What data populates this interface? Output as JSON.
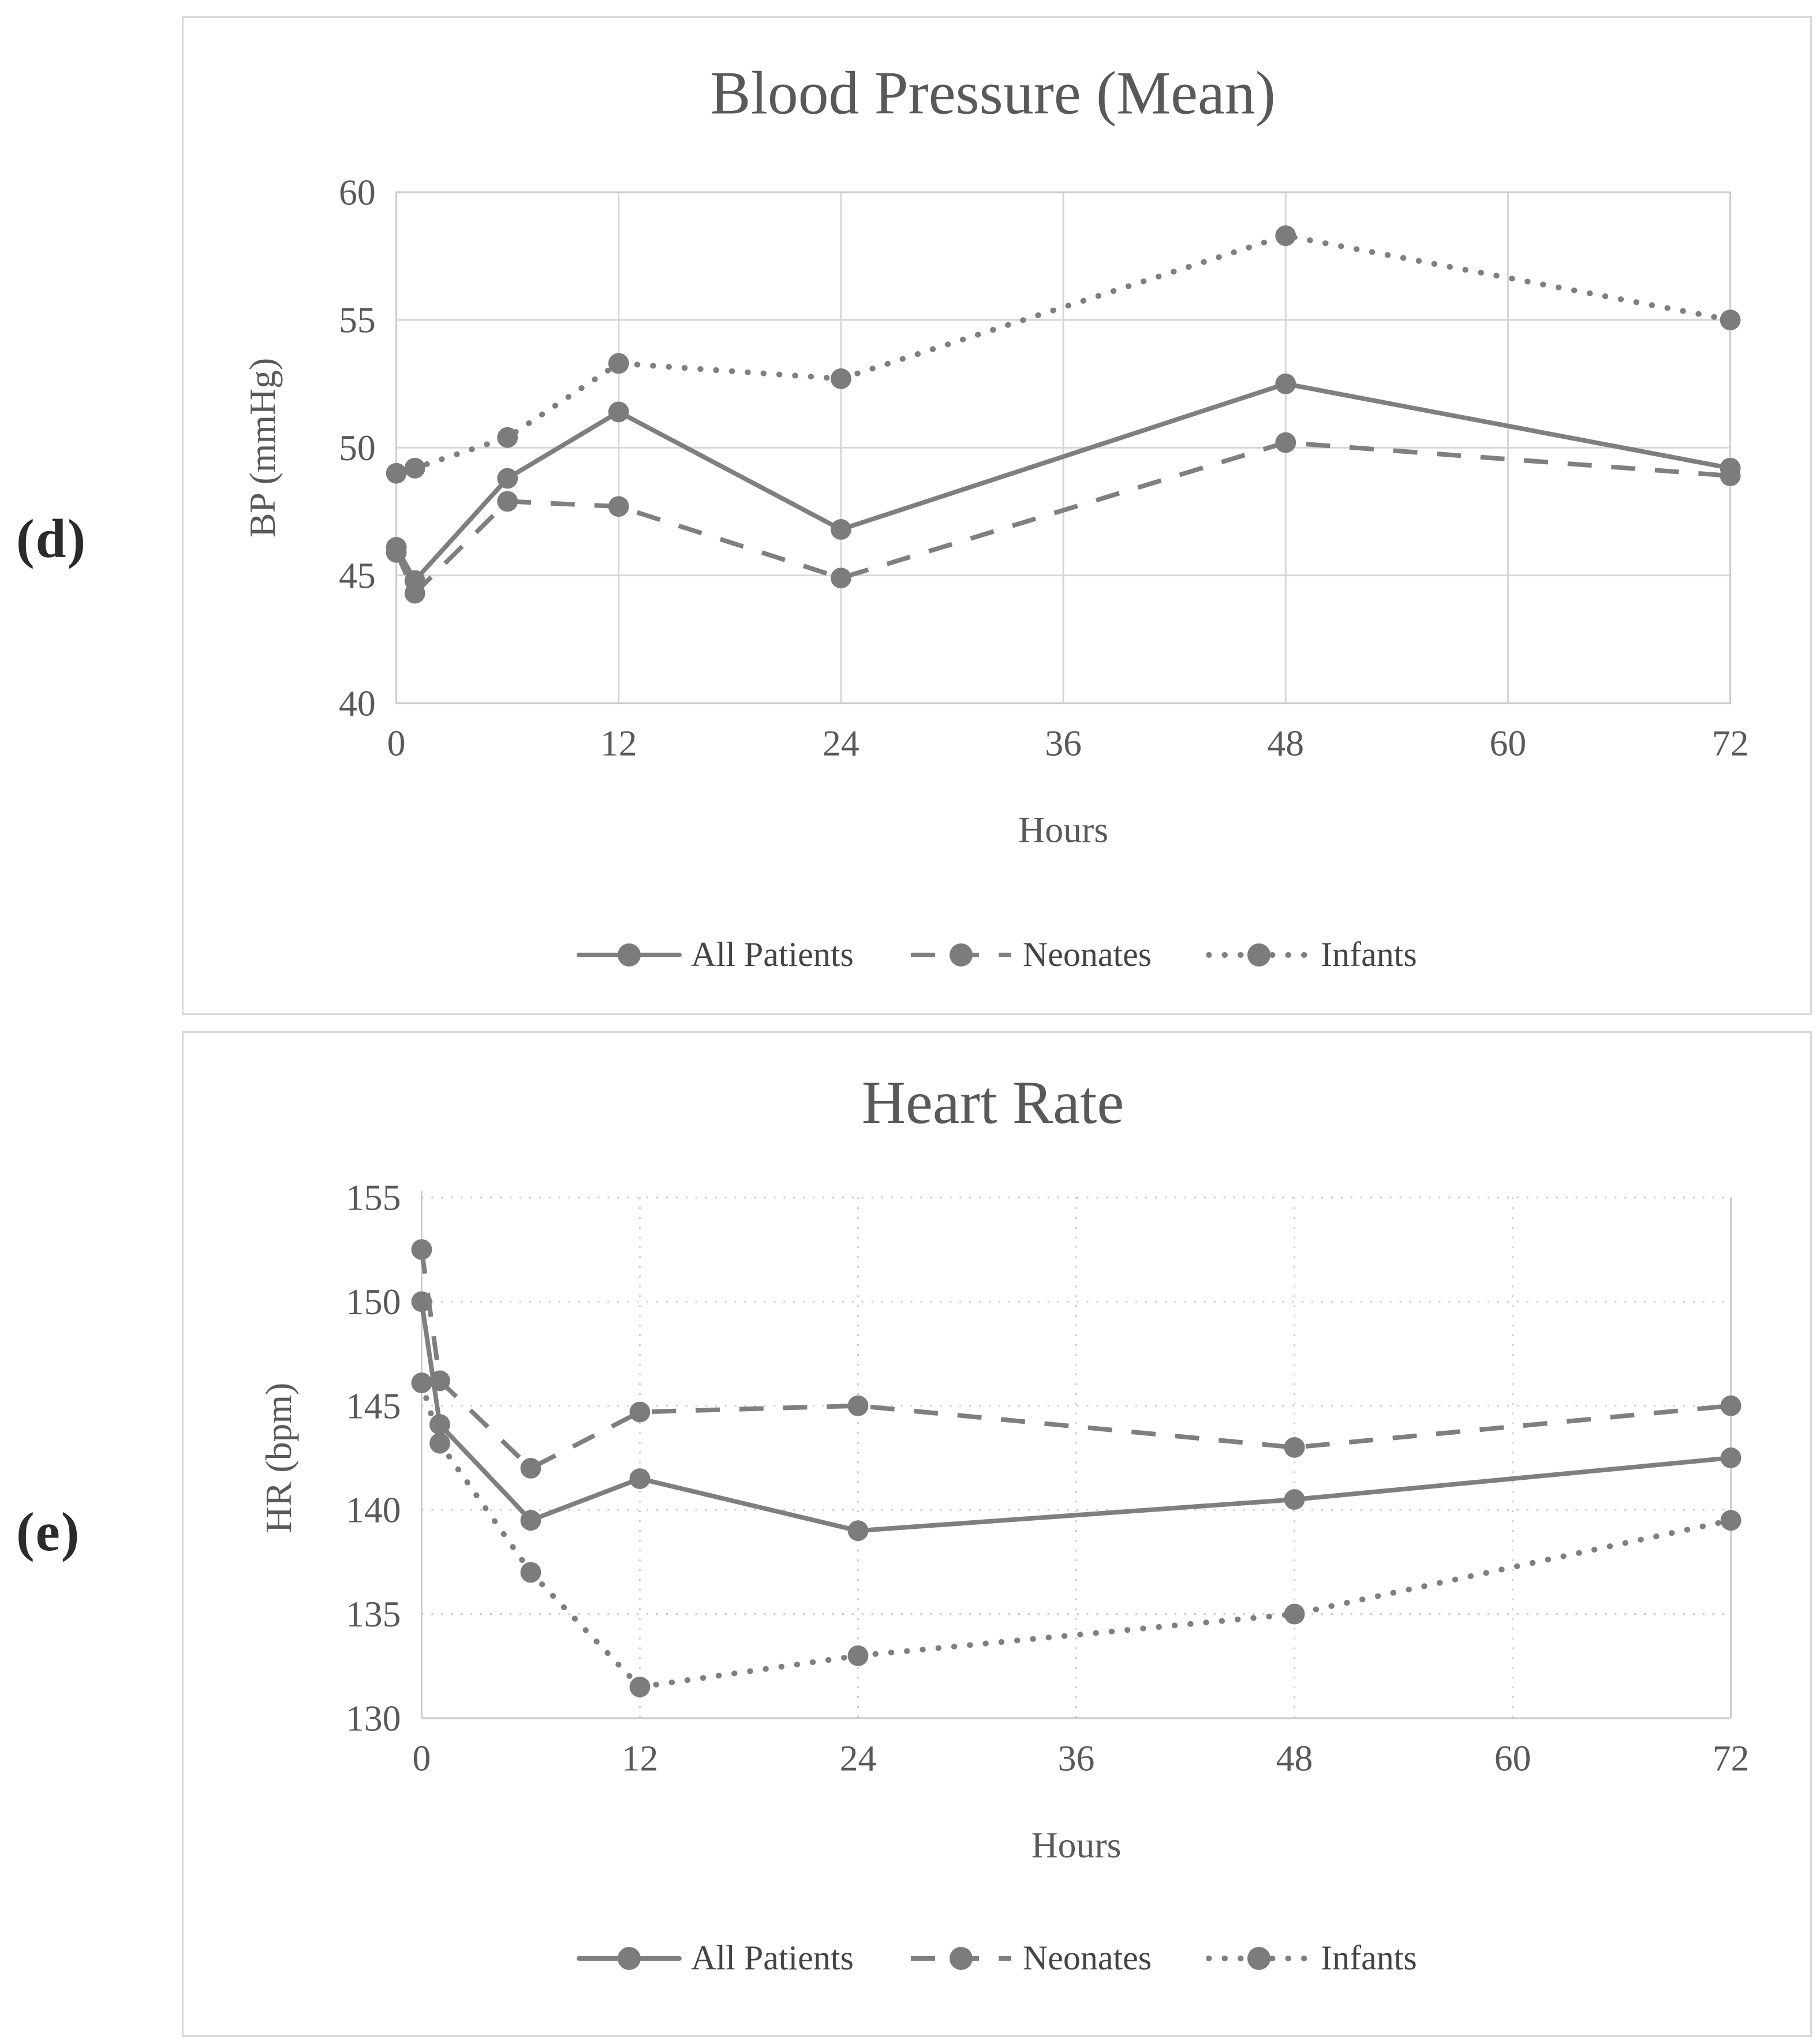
{
  "figure": {
    "panels": [
      {
        "label": "(d)"
      },
      {
        "label": "(e)"
      }
    ]
  },
  "colors": {
    "series_line": "#7f7f7f",
    "marker_fill": "#7c7c7c",
    "grid_solid": "#d6d6d6",
    "grid_dotted": "#c9c9c9",
    "plot_border": "#cccccc",
    "tick_text": "#595959",
    "title_text": "#595959",
    "legend_text": "#444444",
    "side_label_text": "#2b2b2b"
  },
  "chart_data": [
    {
      "id": "bp",
      "type": "line",
      "title": "Blood Pressure (Mean)",
      "xlabel": "Hours",
      "ylabel": "BP (mmHg)",
      "xlim": [
        0,
        72
      ],
      "ylim": [
        40,
        60
      ],
      "xticks": [
        0,
        12,
        24,
        36,
        48,
        60,
        72
      ],
      "yticks": [
        40,
        45,
        50,
        55,
        60
      ],
      "grid": "solid",
      "legend_position": "bottom",
      "series": [
        {
          "name": "All Patients",
          "style": "solid",
          "points": [
            [
              0,
              46.1
            ],
            [
              1,
              44.8
            ],
            [
              6,
              48.8
            ],
            [
              12,
              51.4
            ],
            [
              24,
              46.8
            ],
            [
              48,
              52.5
            ],
            [
              72,
              49.2
            ]
          ]
        },
        {
          "name": "Neonates",
          "style": "dashed",
          "points": [
            [
              0,
              45.9
            ],
            [
              1,
              44.3
            ],
            [
              6,
              47.9
            ],
            [
              12,
              47.7
            ],
            [
              24,
              44.9
            ],
            [
              48,
              50.2
            ],
            [
              72,
              48.9
            ]
          ]
        },
        {
          "name": "Infants",
          "style": "dotted",
          "points": [
            [
              0,
              49.0
            ],
            [
              1,
              49.2
            ],
            [
              6,
              50.4
            ],
            [
              12,
              53.3
            ],
            [
              24,
              52.7
            ],
            [
              48,
              58.3
            ],
            [
              72,
              55.0
            ]
          ]
        }
      ]
    },
    {
      "id": "hr",
      "type": "line",
      "title": "Heart Rate",
      "xlabel": "Hours",
      "ylabel": "HR (bpm)",
      "xlim": [
        0,
        72
      ],
      "ylim": [
        130,
        155
      ],
      "xticks": [
        0,
        12,
        24,
        36,
        48,
        60,
        72
      ],
      "yticks": [
        130,
        135,
        140,
        145,
        150,
        155
      ],
      "grid": "dotted",
      "legend_position": "bottom",
      "series": [
        {
          "name": "All Patients",
          "style": "solid",
          "points": [
            [
              0,
              150.0
            ],
            [
              1,
              144.1
            ],
            [
              6,
              139.5
            ],
            [
              12,
              141.5
            ],
            [
              24,
              139.0
            ],
            [
              48,
              140.5
            ],
            [
              72,
              142.5
            ]
          ]
        },
        {
          "name": "Neonates",
          "style": "dashed",
          "points": [
            [
              0,
              152.5
            ],
            [
              1,
              146.2
            ],
            [
              6,
              142.0
            ],
            [
              12,
              144.7
            ],
            [
              24,
              145.0
            ],
            [
              48,
              143.0
            ],
            [
              72,
              145.0
            ]
          ]
        },
        {
          "name": "Infants",
          "style": "dotted",
          "points": [
            [
              0,
              146.1
            ],
            [
              1,
              143.2
            ],
            [
              6,
              137.0
            ],
            [
              12,
              131.5
            ],
            [
              24,
              133.0
            ],
            [
              48,
              135.0
            ],
            [
              72,
              139.5
            ]
          ]
        }
      ]
    }
  ]
}
